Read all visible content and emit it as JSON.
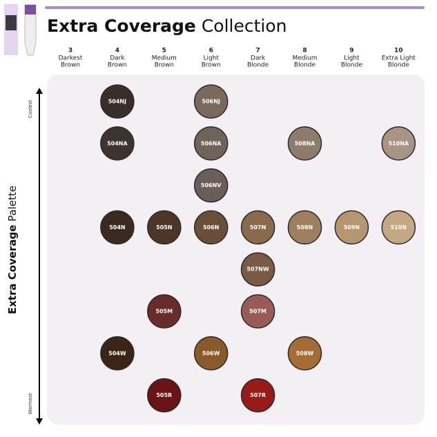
{
  "header": {
    "title": {
      "bold": "Extra Coverage",
      "rest": "Collection"
    }
  },
  "columns": [
    {
      "level": "3",
      "name": [
        "Darkest",
        "Brown"
      ]
    },
    {
      "level": "4",
      "name": [
        "Dark",
        "Brown"
      ]
    },
    {
      "level": "5",
      "name": [
        "Medium",
        "Brown"
      ]
    },
    {
      "level": "6",
      "name": [
        "Light",
        "Brown"
      ]
    },
    {
      "level": "7",
      "name": [
        "Dark",
        "Blonde"
      ]
    },
    {
      "level": "8",
      "name": [
        "Medium",
        "Blonde"
      ]
    },
    {
      "level": "9",
      "name": [
        "Light",
        "Blonde"
      ]
    },
    {
      "level": "10",
      "name": [
        "Extra Light",
        "Blonde"
      ]
    }
  ],
  "side_label": {
    "bold": "Extra Coverage",
    "rest": "Palette"
  },
  "axis": {
    "top": "Coolest",
    "bottom": "Warmest"
  },
  "rows": [
    [
      null,
      {
        "label": "504NJ",
        "color": "#3a2e28"
      },
      null,
      {
        "label": "506NJ",
        "color": "#7a6a5e"
      },
      null,
      null,
      null,
      null
    ],
    [
      null,
      {
        "label": "504NA",
        "color": "#3d342e"
      },
      null,
      {
        "label": "506NA",
        "color": "#6f635a"
      },
      null,
      {
        "label": "508NA",
        "color": "#8d7b6c"
      },
      null,
      {
        "label": "510NA",
        "color": "#a89484"
      }
    ],
    [
      null,
      null,
      null,
      {
        "label": "506NV",
        "color": "#6b5e58"
      },
      null,
      null,
      null,
      null
    ],
    [
      null,
      {
        "label": "504N",
        "color": "#3b2a1f"
      },
      {
        "label": "505N",
        "color": "#4e3626"
      },
      {
        "label": "506N",
        "color": "#6a4e38"
      },
      {
        "label": "507N",
        "color": "#8a6a4c"
      },
      {
        "label": "508N",
        "color": "#9e7f5e"
      },
      {
        "label": "509N",
        "color": "#b5976f"
      },
      {
        "label": "510N",
        "color": "#c4a882"
      }
    ],
    [
      null,
      null,
      null,
      null,
      {
        "label": "507NW",
        "color": "#7a5a44"
      },
      null,
      null,
      null
    ],
    [
      null,
      null,
      {
        "label": "505M",
        "color": "#6a2c28"
      },
      null,
      {
        "label": "507M",
        "color": "#9a5a55"
      },
      null,
      null,
      null
    ],
    [
      null,
      {
        "label": "504W",
        "color": "#3a2518"
      },
      null,
      {
        "label": "506W",
        "color": "#8a5a2a"
      },
      null,
      {
        "label": "508W",
        "color": "#a56d34"
      },
      null,
      null
    ],
    [
      null,
      null,
      {
        "label": "505R",
        "color": "#6a1214"
      },
      null,
      {
        "label": "507R",
        "color": "#9a1a18"
      },
      null,
      null,
      null
    ]
  ]
}
